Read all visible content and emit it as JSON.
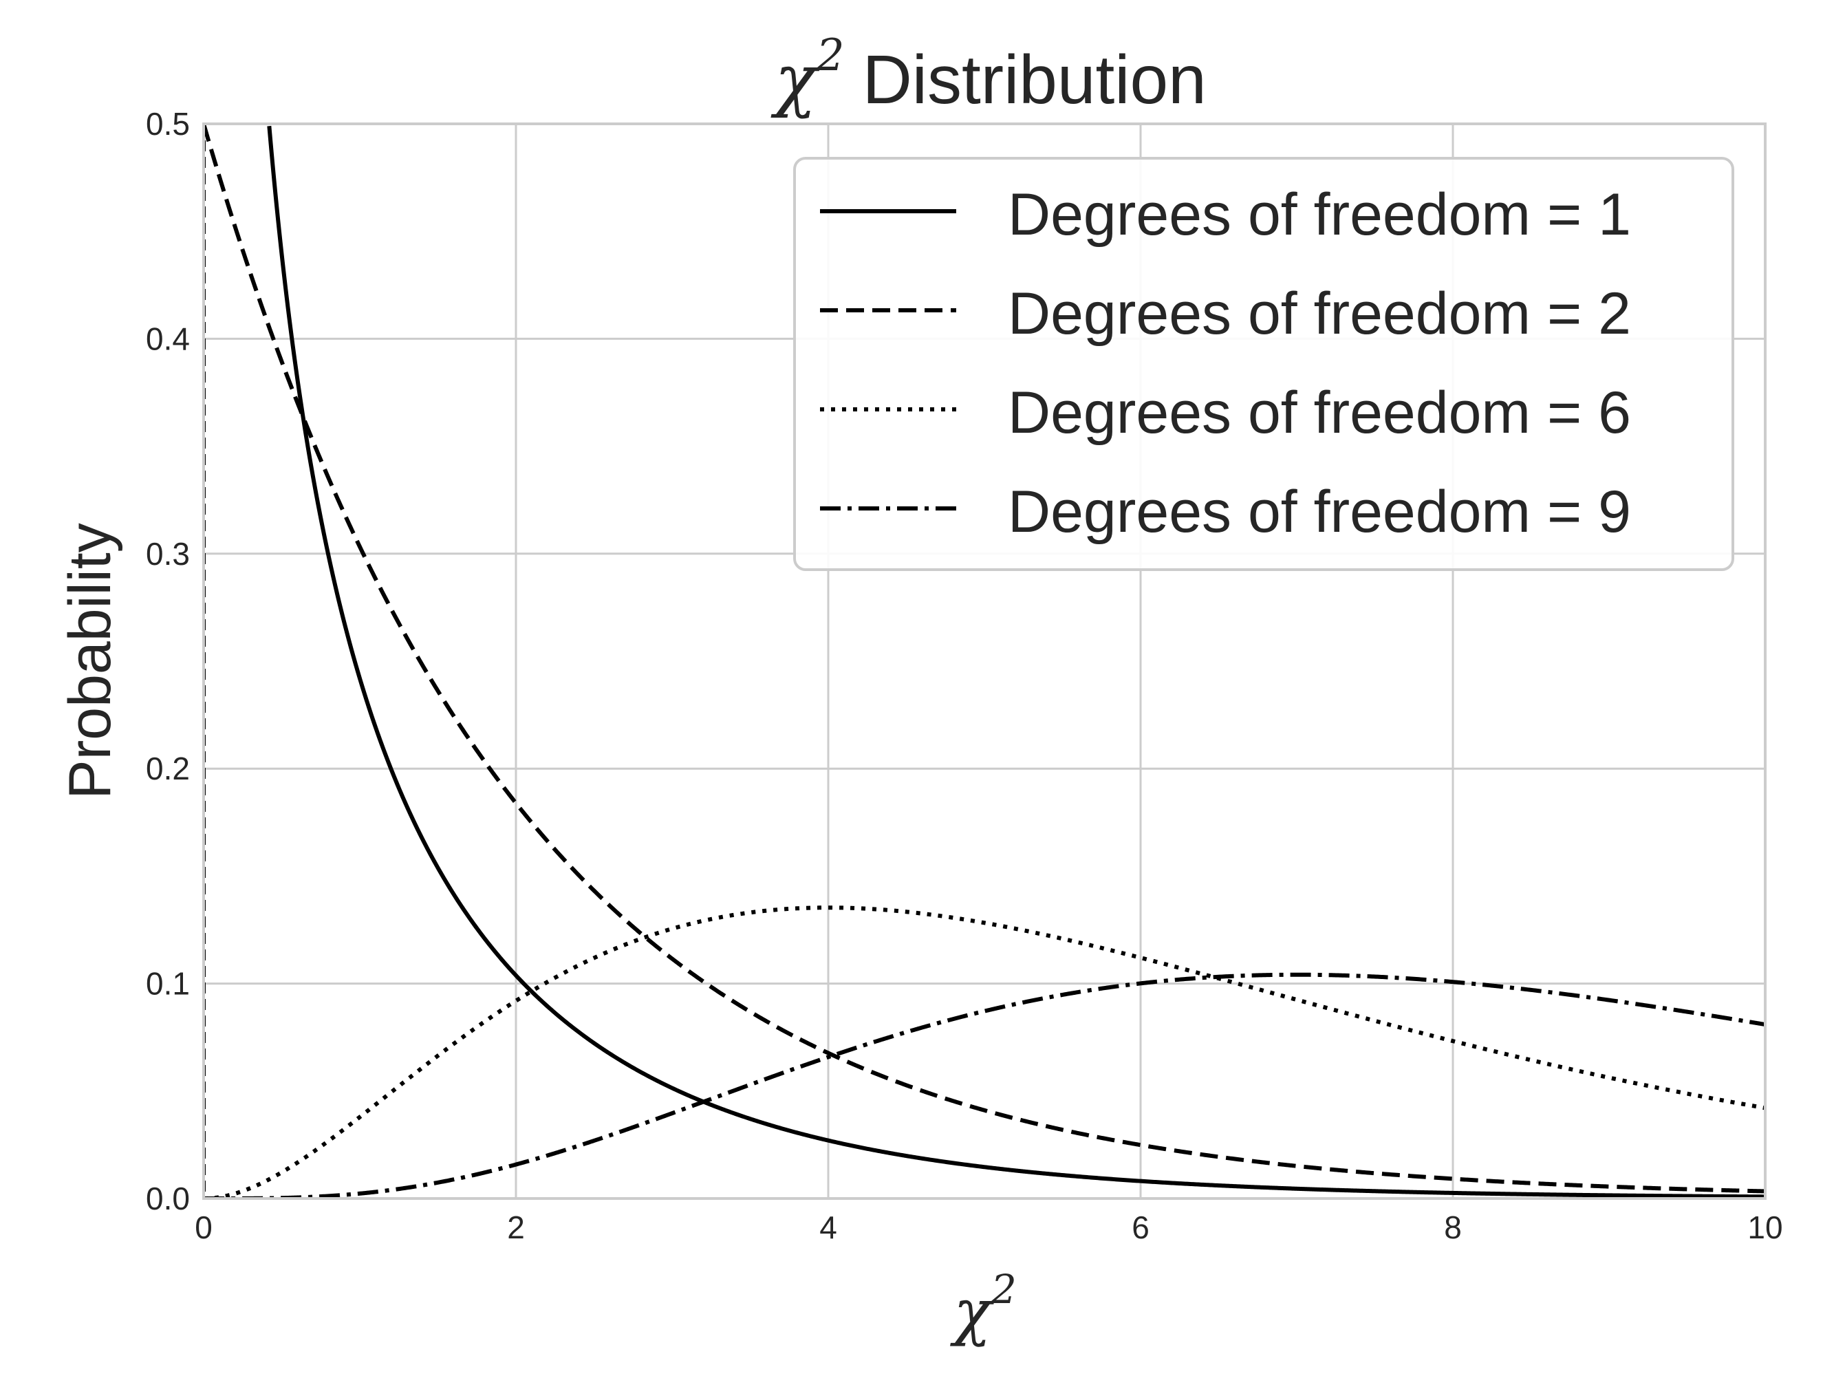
{
  "chart_data": {
    "type": "line",
    "title": {
      "symbol": "χ",
      "exponent": "2",
      "text": "Distribution"
    },
    "xlabel": {
      "symbol": "χ",
      "exponent": "2"
    },
    "ylabel": "Probability",
    "xlim": [
      0,
      10
    ],
    "ylim": [
      0,
      0.5
    ],
    "xticks": [
      0,
      2,
      4,
      6,
      8,
      10
    ],
    "xtick_labels": [
      "0",
      "2",
      "4",
      "6",
      "8",
      "10"
    ],
    "yticks": [
      0.0,
      0.1,
      0.2,
      0.3,
      0.4,
      0.5
    ],
    "ytick_labels": [
      "0.0",
      "0.1",
      "0.2",
      "0.3",
      "0.4",
      "0.5"
    ],
    "grid": true,
    "legend_position": "top-right",
    "line_color": "#000000",
    "grid_color": "#cccccc",
    "series": [
      {
        "name": "Degrees of freedom = 1",
        "df": 1,
        "style": "solid",
        "x": [
          0.45,
          0.5,
          0.75,
          1,
          1.5,
          2,
          3,
          4,
          5,
          6,
          8,
          10
        ],
        "values": [
          0.478,
          0.439,
          0.323,
          0.242,
          0.154,
          0.104,
          0.051,
          0.027,
          0.015,
          0.008,
          0.003,
          0.001
        ]
      },
      {
        "name": "Degrees of freedom = 2",
        "df": 2,
        "style": "dashed",
        "x": [
          0,
          0.5,
          1,
          2,
          3,
          4,
          5,
          6,
          7,
          8,
          9,
          10
        ],
        "values": [
          0.5,
          0.389,
          0.303,
          0.184,
          0.112,
          0.068,
          0.041,
          0.025,
          0.015,
          0.009,
          0.006,
          0.003
        ]
      },
      {
        "name": "Degrees of freedom = 6",
        "df": 6,
        "style": "dotted",
        "x": [
          0,
          1,
          2,
          3,
          4,
          5,
          6,
          7,
          8,
          9,
          10
        ],
        "values": [
          0,
          0.038,
          0.092,
          0.126,
          0.135,
          0.128,
          0.112,
          0.092,
          0.073,
          0.056,
          0.042
        ]
      },
      {
        "name": "Degrees of freedom = 9",
        "df": 9,
        "style": "dashdot",
        "x": [
          0,
          1,
          2,
          3,
          4,
          5,
          6,
          7,
          8,
          9,
          10
        ],
        "values": [
          0,
          0.003,
          0.015,
          0.038,
          0.066,
          0.089,
          0.101,
          0.104,
          0.1,
          0.091,
          0.08
        ]
      }
    ]
  }
}
